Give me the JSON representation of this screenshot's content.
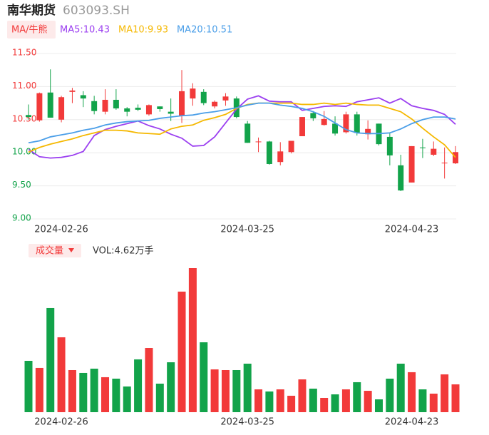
{
  "header": {
    "name": "南华期货",
    "code": "603093.SH"
  },
  "chart_data": {
    "type": "candlestick",
    "ma_button": "MA/牛熊",
    "ma_labels": [
      {
        "text": "MA5:10.43",
        "color": "#9b3ff0"
      },
      {
        "text": "MA10:9.93",
        "color": "#f5b800"
      },
      {
        "text": "MA20:10.51",
        "color": "#4a9ee8"
      }
    ],
    "up_color": "#f23a3a",
    "down_color": "#12a34a",
    "grid": true,
    "categories": [
      null,
      null,
      null,
      "2024-02-26",
      null,
      null,
      null,
      null,
      null,
      null,
      null,
      null,
      null,
      null,
      null,
      null,
      null,
      null,
      null,
      null,
      "2024-03-25",
      null,
      null,
      null,
      null,
      null,
      null,
      null,
      null,
      null,
      null,
      null,
      null,
      null,
      null,
      "2024-04-23",
      null,
      null,
      null,
      null
    ],
    "open": [
      10.57,
      10.49,
      10.91,
      10.5,
      10.92,
      10.87,
      10.78,
      10.62,
      10.8,
      10.67,
      10.68,
      10.58,
      10.7,
      10.62,
      10.56,
      10.82,
      10.92,
      10.7,
      10.79,
      10.82,
      10.44,
      10.16,
      10.17,
      9.86,
      10.01,
      10.25,
      10.6,
      10.42,
      10.44,
      10.31,
      10.58,
      10.28,
      10.44,
      10.24,
      9.81,
      9.55,
      10.08,
      9.97,
      9.84,
      9.84
    ],
    "high": [
      10.73,
      10.91,
      11.26,
      10.86,
      10.98,
      10.93,
      10.86,
      10.96,
      10.96,
      10.69,
      10.73,
      10.73,
      10.7,
      10.82,
      11.25,
      11.05,
      10.96,
      10.79,
      10.9,
      10.85,
      10.48,
      10.23,
      10.18,
      10.16,
      10.18,
      10.54,
      10.63,
      10.63,
      10.55,
      10.62,
      10.62,
      10.49,
      10.44,
      10.31,
      9.97,
      10.1,
      10.21,
      10.17,
      10.08,
      10.1
    ],
    "low": [
      10.5,
      10.47,
      10.53,
      10.46,
      10.75,
      10.69,
      10.58,
      10.58,
      10.65,
      10.55,
      10.63,
      10.56,
      10.62,
      10.48,
      10.45,
      10.71,
      10.72,
      10.67,
      10.71,
      10.52,
      10.15,
      10.01,
      9.82,
      9.81,
      9.99,
      10.25,
      10.48,
      10.41,
      10.26,
      10.29,
      10.26,
      10.2,
      10.11,
      9.81,
      9.42,
      9.55,
      9.92,
      9.95,
      9.61,
      9.83
    ],
    "close": [
      10.54,
      10.9,
      10.53,
      10.84,
      10.94,
      10.82,
      10.63,
      10.8,
      10.67,
      10.62,
      10.65,
      10.72,
      10.66,
      10.59,
      10.93,
      10.97,
      10.75,
      10.77,
      10.85,
      10.54,
      10.15,
      10.17,
      9.83,
      10.02,
      10.18,
      10.54,
      10.52,
      10.51,
      10.29,
      10.58,
      10.3,
      10.36,
      10.13,
      9.96,
      9.43,
      10.1,
      10.07,
      10.06,
      9.85,
      10.01
    ],
    "series": [
      {
        "name": "MA5",
        "color": "#9b3ff0",
        "values": [
          10.05,
          9.94,
          9.92,
          9.93,
          9.96,
          10.02,
          10.26,
          10.35,
          10.4,
          10.44,
          10.48,
          10.41,
          10.36,
          10.28,
          10.22,
          10.1,
          10.11,
          10.24,
          10.45,
          10.66,
          10.81,
          10.86,
          10.78,
          10.77,
          10.77,
          10.64,
          10.67,
          10.7,
          10.71,
          10.7,
          10.77,
          10.8,
          10.83,
          10.75,
          10.82,
          10.71,
          10.67,
          10.64,
          10.58,
          10.43
        ]
      },
      {
        "name": "MA10",
        "color": "#f5b800",
        "values": [
          10.01,
          10.08,
          10.13,
          10.17,
          10.21,
          10.26,
          10.3,
          10.34,
          10.34,
          10.33,
          10.3,
          10.29,
          10.28,
          10.36,
          10.4,
          10.42,
          10.49,
          10.53,
          10.58,
          10.67,
          10.73,
          10.75,
          10.75,
          10.75,
          10.75,
          10.73,
          10.73,
          10.75,
          10.73,
          10.75,
          10.73,
          10.72,
          10.72,
          10.67,
          10.62,
          10.51,
          10.37,
          10.24,
          10.12,
          9.93
        ]
      },
      {
        "name": "MA20",
        "color": "#4a9ee8",
        "values": [
          10.15,
          10.18,
          10.24,
          10.27,
          10.3,
          10.34,
          10.37,
          10.42,
          10.45,
          10.47,
          10.48,
          10.49,
          10.52,
          10.54,
          10.56,
          10.57,
          10.6,
          10.62,
          10.65,
          10.68,
          10.72,
          10.75,
          10.75,
          10.72,
          10.7,
          10.67,
          10.62,
          10.55,
          10.45,
          10.35,
          10.3,
          10.29,
          10.29,
          10.3,
          10.36,
          10.44,
          10.5,
          10.54,
          10.54,
          10.51
        ]
      }
    ],
    "ylim": [
      9.0,
      11.5
    ],
    "yticks": [
      {
        "value": 9.0,
        "label": "9.00",
        "color": "#12a34a"
      },
      {
        "value": 9.5,
        "label": "9.50",
        "color": "#12a34a"
      },
      {
        "value": 10.0,
        "label": "10.00",
        "color": "#12a34a"
      },
      {
        "value": 10.5,
        "label": "10.50",
        "color": "#f23a3a"
      },
      {
        "value": 11.0,
        "label": "11.00",
        "color": "#f23a3a"
      },
      {
        "value": 11.5,
        "label": "11.50",
        "color": "#f23a3a"
      }
    ],
    "volume": {
      "button": "成交量",
      "label": "VOL:4.62万手",
      "values": [
        8.53,
        7.35,
        17.3,
        12.44,
        6.99,
        6.52,
        7.23,
        5.81,
        5.57,
        4.27,
        8.77,
        10.66,
        4.74,
        8.29,
        20.03,
        23.93,
        11.61,
        7.11,
        6.99,
        6.99,
        8.06,
        3.79,
        3.44,
        3.79,
        2.73,
        5.45,
        3.91,
        2.37,
        2.96,
        3.79,
        4.98,
        3.55,
        2.13,
        5.57,
        8.06,
        6.64,
        3.79,
        3.08,
        6.28,
        4.62
      ]
    }
  }
}
